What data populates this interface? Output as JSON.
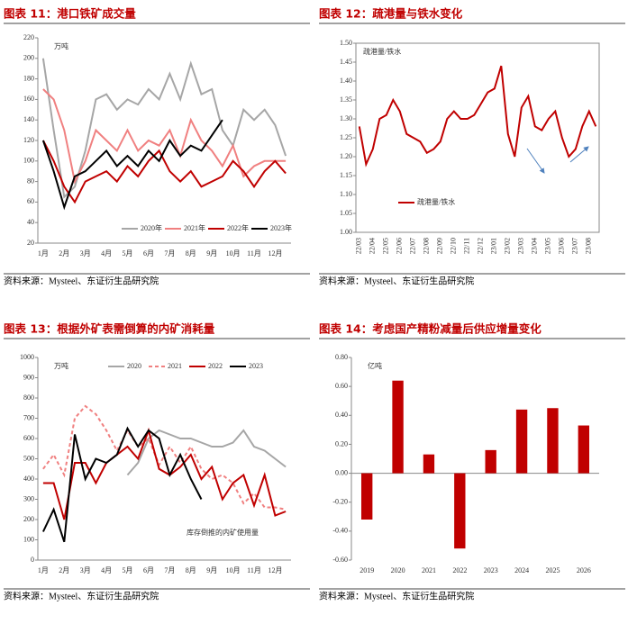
{
  "chart_data": [
    {
      "type": "line",
      "title": "图表 11：港口铁矿成交量",
      "source": "资料来源：Mysteel、东证衍生品研究院",
      "unit": "万吨",
      "categories": [
        "1月",
        null,
        "2月",
        null,
        "3月",
        null,
        "4月",
        null,
        "5月",
        null,
        "6月",
        null,
        "7月",
        null,
        "8月",
        null,
        "9月",
        null,
        "10月",
        null,
        "11月",
        null,
        "12月",
        null
      ],
      "series": [
        {
          "name": "2020年",
          "color": "#a6a6a6",
          "values": [
            200,
            130,
            65,
            75,
            110,
            160,
            165,
            150,
            160,
            155,
            170,
            160,
            185,
            160,
            195,
            165,
            170,
            130,
            115,
            150,
            140,
            150,
            135,
            105
          ]
        },
        {
          "name": "2021年",
          "color": "#f08080",
          "values": [
            170,
            160,
            130,
            80,
            100,
            130,
            120,
            110,
            130,
            110,
            120,
            115,
            130,
            105,
            140,
            120,
            110,
            95,
            115,
            85,
            95,
            100,
            100,
            100
          ]
        },
        {
          "name": "2022年",
          "color": "#c00000",
          "values": [
            120,
            100,
            75,
            60,
            80,
            85,
            90,
            80,
            95,
            85,
            100,
            110,
            90,
            80,
            90,
            75,
            80,
            85,
            100,
            90,
            75,
            90,
            100,
            88
          ]
        },
        {
          "name": "2023年",
          "color": "#000000",
          "values": [
            120,
            90,
            55,
            85,
            90,
            100,
            110,
            95,
            105,
            95,
            110,
            100,
            120,
            105,
            115,
            110,
            125,
            140,
            null,
            null,
            null,
            null,
            null,
            null
          ]
        }
      ],
      "ylim": [
        20,
        220
      ],
      "yticks": [
        20,
        40,
        60,
        80,
        100,
        120,
        140,
        160,
        180,
        200,
        220
      ],
      "legend": "bottom"
    },
    {
      "type": "line",
      "title": "图表 12：疏港量与铁水变化",
      "source": "资料来源：Mysteel、东证衍生品研究院",
      "unit": "疏港量/铁水",
      "categories": [
        "22/03",
        null,
        "22/04",
        null,
        "22/05",
        null,
        "22/06",
        null,
        "22/07",
        null,
        "22/08",
        null,
        "22/09",
        null,
        "22/10",
        null,
        "22/11",
        null,
        "22/12",
        null,
        "23/01",
        null,
        "23/02",
        null,
        "23/03",
        null,
        "23/04",
        null,
        "23/05",
        null,
        "23/06",
        null,
        "23/07",
        null,
        "23/08",
        null
      ],
      "series": [
        {
          "name": "疏港量/铁水",
          "color": "#c00000",
          "values": [
            1.28,
            1.18,
            1.22,
            1.3,
            1.31,
            1.35,
            1.32,
            1.26,
            1.25,
            1.24,
            1.21,
            1.22,
            1.24,
            1.3,
            1.32,
            1.3,
            1.3,
            1.31,
            1.34,
            1.37,
            1.38,
            1.44,
            1.26,
            1.2,
            1.33,
            1.36,
            1.28,
            1.27,
            1.3,
            1.32,
            1.25,
            1.2,
            1.22,
            1.28,
            1.32,
            1.28
          ]
        }
      ],
      "ylim": [
        1.0,
        1.5
      ],
      "yticks": [
        {
          "value": 1.0,
          "label": "1.00"
        },
        {
          "value": 1.05,
          "label": "1.05"
        },
        {
          "value": 1.1,
          "label": "1.10"
        },
        {
          "value": 1.15,
          "label": "1.15"
        },
        {
          "value": 1.2,
          "label": "1.20"
        },
        {
          "value": 1.25,
          "label": "1.25"
        },
        {
          "value": 1.3,
          "label": "1.30"
        },
        {
          "value": 1.35,
          "label": "1.35"
        },
        {
          "value": 1.4,
          "label": "1.40"
        },
        {
          "value": 1.45,
          "label": "1.45"
        },
        {
          "value": 1.5,
          "label": "1.50"
        }
      ],
      "legend": "lower left"
    },
    {
      "type": "line",
      "title": "图表 13：根据外矿表需倒算的内矿消耗量",
      "source": "资料来源：Mysteel、东证衍生品研究院",
      "unit": "万吨",
      "annotation": "库存倒推的内矿使用量",
      "categories": [
        "1月",
        null,
        "2月",
        null,
        "3月",
        null,
        "4月",
        null,
        "5月",
        null,
        "6月",
        null,
        "7月",
        null,
        "8月",
        null,
        "9月",
        null,
        "10月",
        null,
        "11月",
        null,
        "12月",
        null
      ],
      "series": [
        {
          "name": "2020",
          "color": "#a6a6a6",
          "dashed": false,
          "values": [
            null,
            null,
            null,
            null,
            null,
            null,
            null,
            null,
            420,
            480,
            600,
            640,
            620,
            600,
            600,
            580,
            560,
            560,
            580,
            640,
            560,
            540,
            500,
            460
          ]
        },
        {
          "name": "2021",
          "color": "#f08080",
          "dashed": true,
          "values": [
            450,
            520,
            420,
            700,
            760,
            720,
            640,
            540,
            640,
            560,
            600,
            470,
            560,
            480,
            560,
            450,
            400,
            420,
            380,
            280,
            330,
            260,
            260,
            250
          ]
        },
        {
          "name": "2022",
          "color": "#c00000",
          "dashed": false,
          "values": [
            380,
            380,
            200,
            480,
            480,
            380,
            480,
            520,
            560,
            500,
            640,
            450,
            420,
            460,
            520,
            400,
            460,
            300,
            380,
            420,
            270,
            420,
            220,
            240
          ]
        },
        {
          "name": "2023",
          "color": "#000000",
          "dashed": false,
          "values": [
            140,
            250,
            90,
            620,
            400,
            500,
            480,
            520,
            650,
            560,
            640,
            600,
            420,
            520,
            400,
            300,
            null,
            null,
            null,
            null,
            null,
            null,
            null,
            null
          ]
        }
      ],
      "ylim": [
        0,
        1000
      ],
      "yticks": [
        0,
        100,
        200,
        300,
        400,
        500,
        600,
        700,
        800,
        900,
        1000
      ],
      "legend": "top"
    },
    {
      "type": "bar",
      "title": "图表 14：考虑国产精粉减量后供应增量变化",
      "source": "资料来源：Mysteel、东证衍生品研究院",
      "unit": "亿吨",
      "categories": [
        "2019",
        "2020",
        "2021",
        "2022",
        "2023",
        "2024",
        "2025",
        "2026"
      ],
      "values": [
        -0.32,
        0.64,
        0.13,
        -0.52,
        0.16,
        0.44,
        0.45,
        0.33
      ],
      "color": "#c00000",
      "ylim": [
        -0.6,
        0.8
      ],
      "yticks": [
        {
          "value": -0.6,
          "label": "-0.60"
        },
        {
          "value": -0.4,
          "label": "-0.40"
        },
        {
          "value": -0.2,
          "label": "-0.20"
        },
        {
          "value": 0,
          "label": "0.00"
        },
        {
          "value": 0.2,
          "label": "0.20"
        },
        {
          "value": 0.4,
          "label": "0.40"
        },
        {
          "value": 0.6,
          "label": "0.60"
        },
        {
          "value": 0.8,
          "label": "0.80"
        }
      ]
    }
  ]
}
